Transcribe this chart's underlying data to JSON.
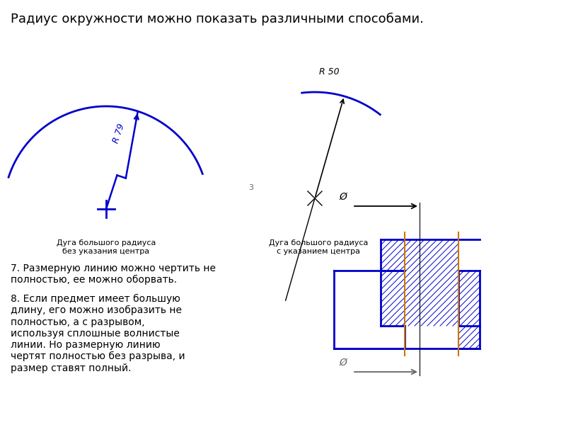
{
  "title": "Радиус окружности можно показать различными способами.",
  "title_fontsize": 13,
  "bg_color": "#ffffff",
  "blue": "#0000cc",
  "black": "#000000",
  "gray": "#666666",
  "orange": "#cc7700",
  "label1": "Дуга большого радиуса\nбез указания центра",
  "label2": "Дуга большого радиуса\nс указанием центра",
  "r79_label": "R 79",
  "r50_label": "R 50",
  "text7": "7. Размерную линию можно чертить не\nполностью, ее можно оборвать.",
  "text8": "8. Если предмет имеет большую\nдлину, его можно изобразить не\nполностью, а с разрывом,\nиспользуя сплошные волнистые\nлинии. Но размерную линию\nчертят полностью без разрыва, и\nразмер ставят полный.",
  "phi_symbol": "Ø"
}
